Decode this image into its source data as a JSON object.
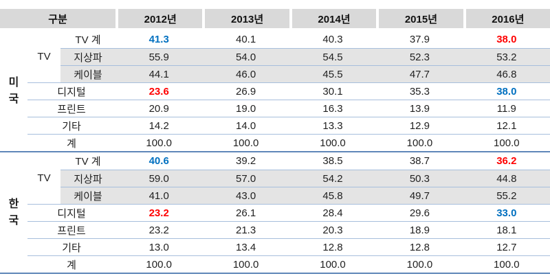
{
  "colors": {
    "accent_blue": "#0070C0",
    "accent_red": "#FF0000",
    "header_bg": "#D9D9D9",
    "shaded_row_bg": "#E4E4E4",
    "line_blue": "#A6BEDC",
    "divider_blue": "#5E86B8"
  },
  "chart_data": {
    "type": "table",
    "header": {
      "label_col": "구분",
      "years": [
        "2012년",
        "2013년",
        "2014년",
        "2015년",
        "2016년"
      ]
    },
    "sections": [
      {
        "country": "미국",
        "tv_group_label": "TV",
        "rows": [
          {
            "label": "TV 계",
            "values": [
              "41.3",
              "40.1",
              "40.3",
              "37.9",
              "38.0"
            ],
            "value_styles": [
              "blue",
              "",
              "",
              "",
              "red"
            ]
          },
          {
            "label": "지상파",
            "values": [
              "55.9",
              "54.0",
              "54.5",
              "52.3",
              "53.2"
            ]
          },
          {
            "label": "케이블",
            "values": [
              "44.1",
              "46.0",
              "45.5",
              "47.7",
              "46.8"
            ]
          },
          {
            "label": "디지털",
            "values": [
              "23.6",
              "26.9",
              "30.1",
              "35.3",
              "38.0"
            ],
            "value_styles": [
              "red",
              "",
              "",
              "",
              "blue"
            ]
          },
          {
            "label": "프린트",
            "values": [
              "20.9",
              "19.0",
              "16.3",
              "13.9",
              "11.9"
            ]
          },
          {
            "label": "기타",
            "values": [
              "14.2",
              "14.0",
              "13.3",
              "12.9",
              "12.1"
            ]
          },
          {
            "label": "계",
            "values": [
              "100.0",
              "100.0",
              "100.0",
              "100.0",
              "100.0"
            ]
          }
        ]
      },
      {
        "country": "한국",
        "tv_group_label": "TV",
        "rows": [
          {
            "label": "TV 계",
            "values": [
              "40.6",
              "39.2",
              "38.5",
              "38.7",
              "36.2"
            ],
            "value_styles": [
              "blue",
              "",
              "",
              "",
              "red"
            ]
          },
          {
            "label": "지상파",
            "values": [
              "59.0",
              "57.0",
              "54.2",
              "50.3",
              "44.8"
            ]
          },
          {
            "label": "케이블",
            "values": [
              "41.0",
              "43.0",
              "45.8",
              "49.7",
              "55.2"
            ]
          },
          {
            "label": "디지털",
            "values": [
              "23.2",
              "26.1",
              "28.4",
              "29.6",
              "33.0"
            ],
            "value_styles": [
              "red",
              "",
              "",
              "",
              "blue"
            ]
          },
          {
            "label": "프린트",
            "values": [
              "23.2",
              "21.3",
              "20.3",
              "18.9",
              "18.1"
            ]
          },
          {
            "label": "기타",
            "values": [
              "13.0",
              "13.4",
              "12.8",
              "12.8",
              "12.7"
            ]
          },
          {
            "label": "계",
            "values": [
              "100.0",
              "100.0",
              "100.0",
              "100.0",
              "100.0"
            ]
          }
        ]
      }
    ]
  }
}
